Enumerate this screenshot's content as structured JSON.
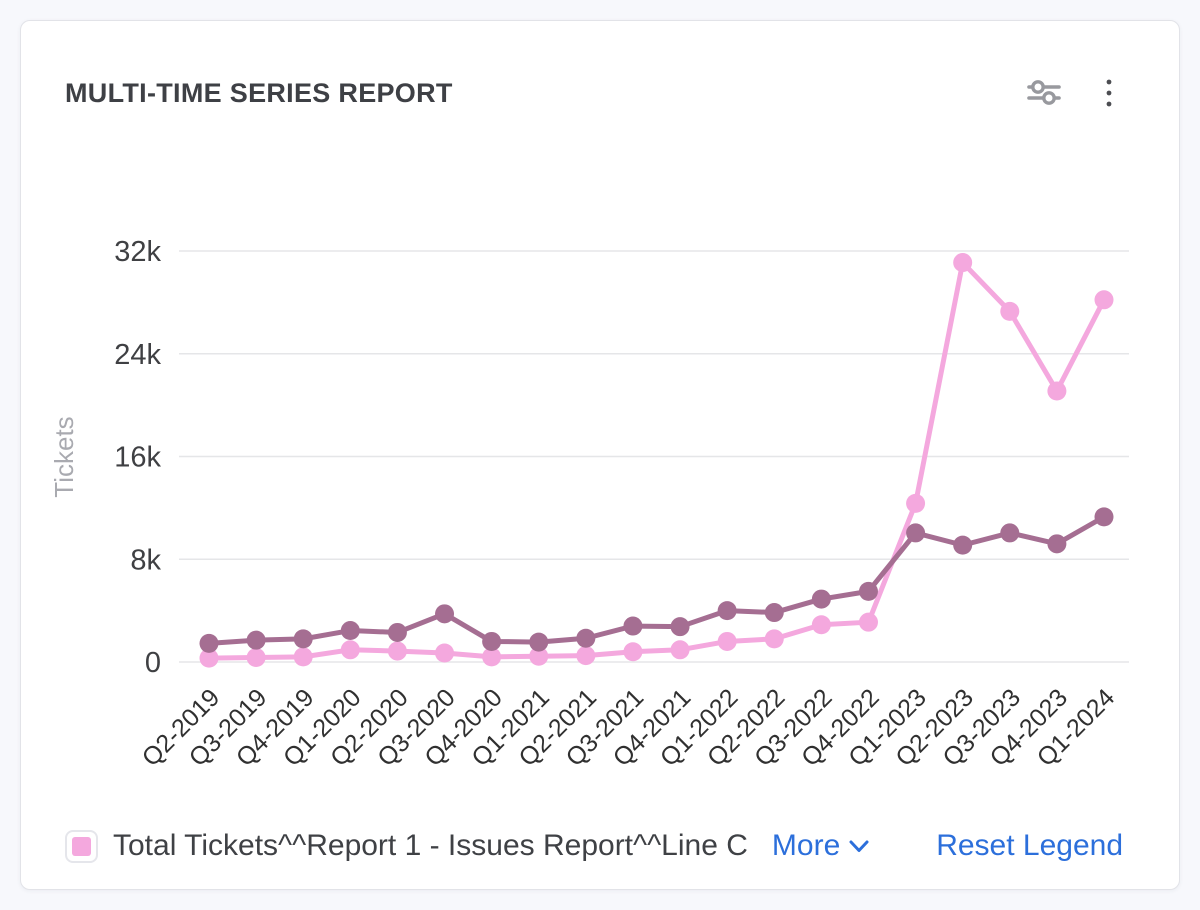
{
  "header": {
    "title": "MULTI-TIME SERIES REPORT"
  },
  "toolbar": {
    "icons": [
      "sliders-icon",
      "kebab-menu-icon"
    ]
  },
  "chart_data": {
    "type": "line",
    "title": "MULTI-TIME SERIES REPORT",
    "xlabel": "",
    "ylabel": "Tickets",
    "ylim": [
      0,
      32000
    ],
    "yticks": [
      0,
      8000,
      16000,
      24000,
      32000
    ],
    "ytick_labels": [
      "0",
      "8k",
      "16k",
      "24k",
      "32k"
    ],
    "grid": true,
    "legend_position": "bottom",
    "categories": [
      "Q2-2019",
      "Q3-2019",
      "Q4-2019",
      "Q1-2020",
      "Q2-2020",
      "Q3-2020",
      "Q4-2020",
      "Q1-2021",
      "Q2-2021",
      "Q3-2021",
      "Q4-2021",
      "Q1-2022",
      "Q2-2022",
      "Q3-2022",
      "Q4-2022",
      "Q1-2023",
      "Q2-2023",
      "Q3-2023",
      "Q4-2023",
      "Q1-2024"
    ],
    "series": [
      {
        "name": "Total Tickets^^Report 1 - Issues Report^^Line C",
        "color": "#f4a8de",
        "values": [
          300,
          350,
          400,
          950,
          850,
          700,
          400,
          450,
          500,
          800,
          950,
          1600,
          1800,
          2900,
          3100,
          12350,
          31100,
          27300,
          21100,
          28200
        ]
      },
      {
        "name": "",
        "color": "#a56e92",
        "values": [
          1450,
          1700,
          1800,
          2450,
          2300,
          3750,
          1600,
          1550,
          1850,
          2800,
          2750,
          4000,
          3850,
          4900,
          5500,
          10050,
          9100,
          10050,
          9200,
          11300
        ]
      }
    ],
    "colors": {
      "grid": "#e5e6e8",
      "tick_label": "#3f4043",
      "x_label": "#303030",
      "axis_name": "#a9aab0"
    }
  },
  "legend": {
    "items": [
      {
        "label": "Total Tickets^^Report 1 - Issues Report^^Line C",
        "swatch_color": "#f4a8de"
      }
    ],
    "more_label": "More",
    "reset_label": "Reset Legend",
    "link_color": "#2c6fdb"
  }
}
